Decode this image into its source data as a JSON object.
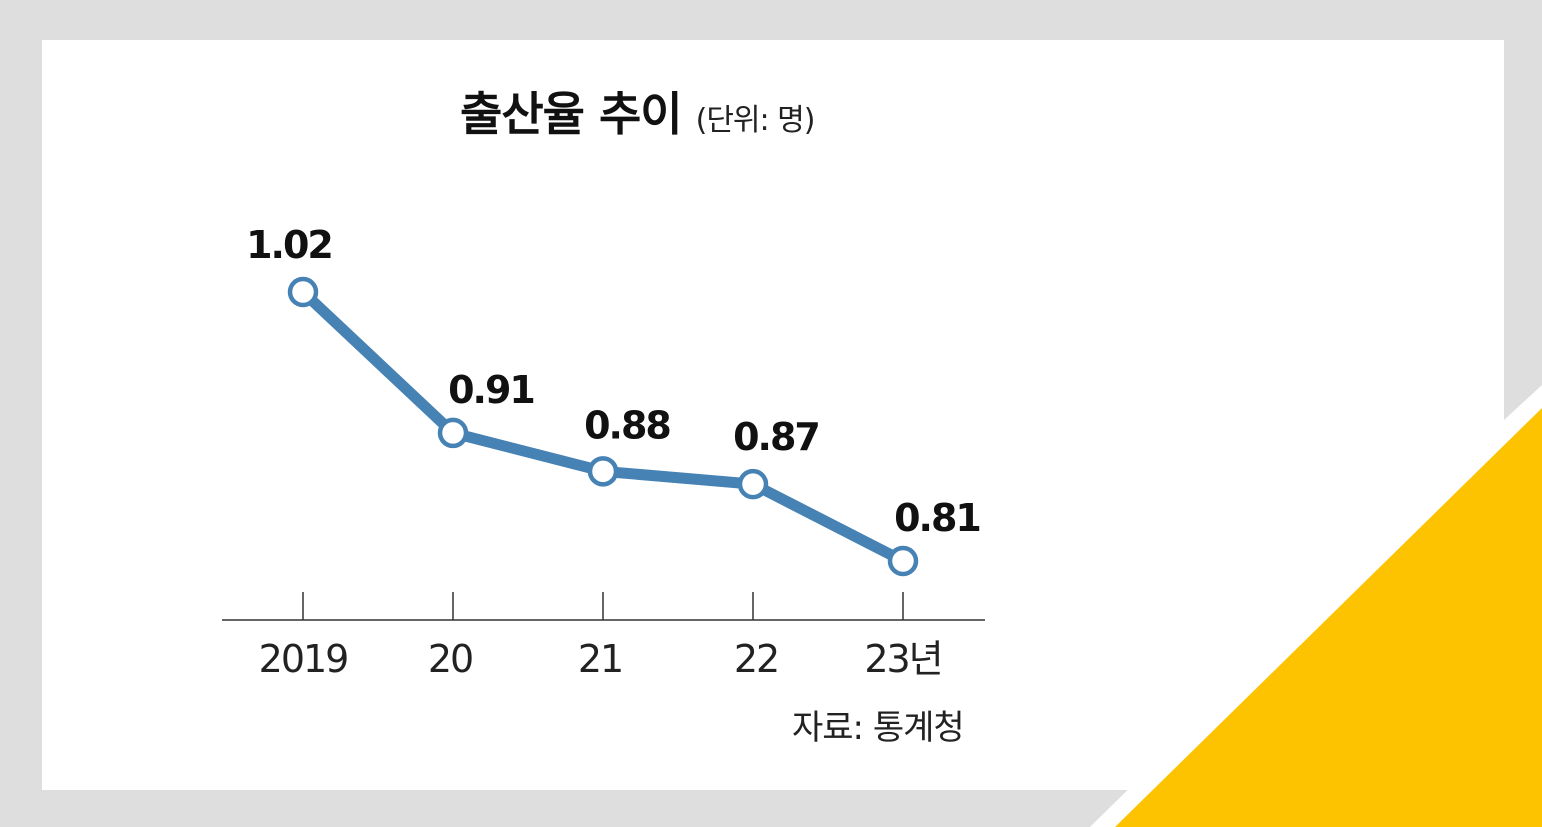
{
  "header": {
    "title": "출산율 추이",
    "unit": "(단위: 명)"
  },
  "footer": {
    "source": "자료: 통계청"
  },
  "colors": {
    "line": "#4682b4",
    "marker_fill": "#ffffff",
    "axis": "#333333",
    "background": "#dedede",
    "panel": "#ffffff",
    "accent_triangle": "#fdc300"
  },
  "chart_data": {
    "type": "line",
    "title": "출산율 추이",
    "unit": "(단위: 명)",
    "categories": [
      "2019",
      "20",
      "21",
      "22",
      "23년"
    ],
    "series": [
      {
        "values": [
          1.02,
          0.91,
          0.88,
          0.87,
          0.81
        ]
      }
    ],
    "data_labels": [
      "1.02",
      "0.91",
      "0.88",
      "0.87",
      "0.81"
    ],
    "grid": false,
    "legend": "none"
  }
}
